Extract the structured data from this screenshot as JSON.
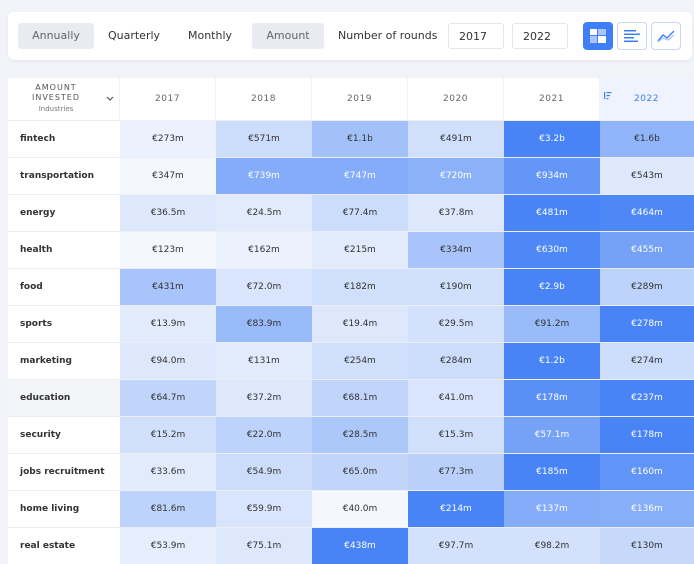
{
  "toolbar": {
    "annually": "Annually",
    "quarterly": "Quarterly",
    "monthly": "Monthly",
    "amount": "Amount",
    "rounds": "Number of rounds",
    "from_year": "2017",
    "to_year": "2022",
    "views": [
      "heatmap-view-icon",
      "list-view-icon",
      "line-chart-view-icon"
    ]
  },
  "table": {
    "label_top": "AMOUNT INVESTED",
    "label_sub": "Industries",
    "years": [
      "2017",
      "2018",
      "2019",
      "2020",
      "2021",
      "2022"
    ],
    "sorted_column": "2022",
    "rows": [
      {
        "name": "fintech",
        "values": [
          "€273m",
          "€571m",
          "€1.1b",
          "€491m",
          "€3.2b",
          "€1.6b"
        ],
        "levels": [
          0.05,
          0.22,
          0.45,
          0.2,
          0.95,
          0.55
        ]
      },
      {
        "name": "transportation",
        "values": [
          "€347m",
          "€739m",
          "€747m",
          "€720m",
          "€934m",
          "€543m"
        ],
        "levels": [
          0.0,
          0.62,
          0.62,
          0.58,
          0.8,
          0.12
        ]
      },
      {
        "name": "energy",
        "values": [
          "€36.5m",
          "€24.5m",
          "€77.4m",
          "€37.8m",
          "€481m",
          "€464m"
        ],
        "levels": [
          0.12,
          0.1,
          0.22,
          0.12,
          0.95,
          0.92
        ]
      },
      {
        "name": "health",
        "values": [
          "€123m",
          "€162m",
          "€215m",
          "€334m",
          "€630m",
          "€455m"
        ],
        "levels": [
          0.0,
          0.05,
          0.1,
          0.42,
          0.92,
          0.7
        ]
      },
      {
        "name": "food",
        "values": [
          "€431m",
          "€72.0m",
          "€182m",
          "€190m",
          "€2.9b",
          "€289m"
        ],
        "levels": [
          0.42,
          0.15,
          0.2,
          0.2,
          0.95,
          0.3
        ]
      },
      {
        "name": "sports",
        "values": [
          "€13.9m",
          "€83.9m",
          "€19.4m",
          "€29.5m",
          "€91.2m",
          "€278m"
        ],
        "levels": [
          0.1,
          0.5,
          0.12,
          0.18,
          0.5,
          0.95
        ]
      },
      {
        "name": "marketing",
        "values": [
          "€94.0m",
          "€131m",
          "€254m",
          "€284m",
          "€1.2b",
          "€274m"
        ],
        "levels": [
          0.12,
          0.1,
          0.2,
          0.22,
          0.95,
          0.22
        ]
      },
      {
        "name": "education",
        "values": [
          "€64.7m",
          "€37.2m",
          "€68.1m",
          "€41.0m",
          "€178m",
          "€237m"
        ],
        "levels": [
          0.28,
          0.12,
          0.28,
          0.15,
          0.85,
          0.95
        ]
      },
      {
        "name": "security",
        "values": [
          "€15.2m",
          "€22.0m",
          "€28.5m",
          "€15.3m",
          "€57.1m",
          "€178m"
        ],
        "levels": [
          0.2,
          0.3,
          0.4,
          0.2,
          0.7,
          0.95
        ]
      },
      {
        "name": "jobs recruitment",
        "values": [
          "€33.6m",
          "€54.9m",
          "€65.0m",
          "€77.3m",
          "€185m",
          "€160m"
        ],
        "levels": [
          0.1,
          0.22,
          0.28,
          0.32,
          0.95,
          0.82
        ]
      },
      {
        "name": "home living",
        "values": [
          "€81.6m",
          "€59.9m",
          "€40.0m",
          "€214m",
          "€137m",
          "€136m"
        ],
        "levels": [
          0.3,
          0.15,
          0.0,
          0.95,
          0.62,
          0.6
        ]
      },
      {
        "name": "real estate",
        "values": [
          "€53.9m",
          "€75.1m",
          "€438m",
          "€97.7m",
          "€98.2m",
          "€130m"
        ],
        "levels": [
          0.08,
          0.12,
          0.95,
          0.18,
          0.18,
          0.25
        ]
      }
    ]
  },
  "colors": {
    "accent": "#3f7ef5",
    "heat_low": "#f4f7fd",
    "heat_high": "#3f7ef5"
  }
}
